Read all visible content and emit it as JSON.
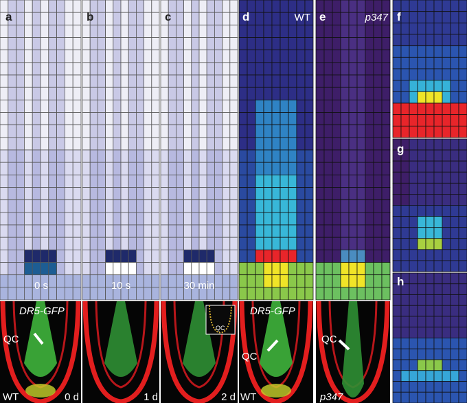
{
  "panels": [
    {
      "label": "a",
      "caption": "0 s"
    },
    {
      "label": "b",
      "caption": "10 s"
    },
    {
      "label": "c",
      "caption": "30 min"
    },
    {
      "label": "d",
      "caption": "WT"
    },
    {
      "label": "e",
      "caption": "p347"
    },
    {
      "label": "f"
    },
    {
      "label": "g"
    },
    {
      "label": "h"
    }
  ],
  "micrographs": [
    {
      "texts": [
        "DR5-GFP",
        "QC",
        "WT",
        "0 d"
      ]
    },
    {
      "texts": [
        "1 d"
      ]
    },
    {
      "texts": [
        "QC",
        "2 d"
      ]
    },
    {
      "texts": [
        "DR5-GFP",
        "QC",
        "WT"
      ]
    },
    {
      "texts": [
        "QC",
        "p347"
      ]
    }
  ]
}
